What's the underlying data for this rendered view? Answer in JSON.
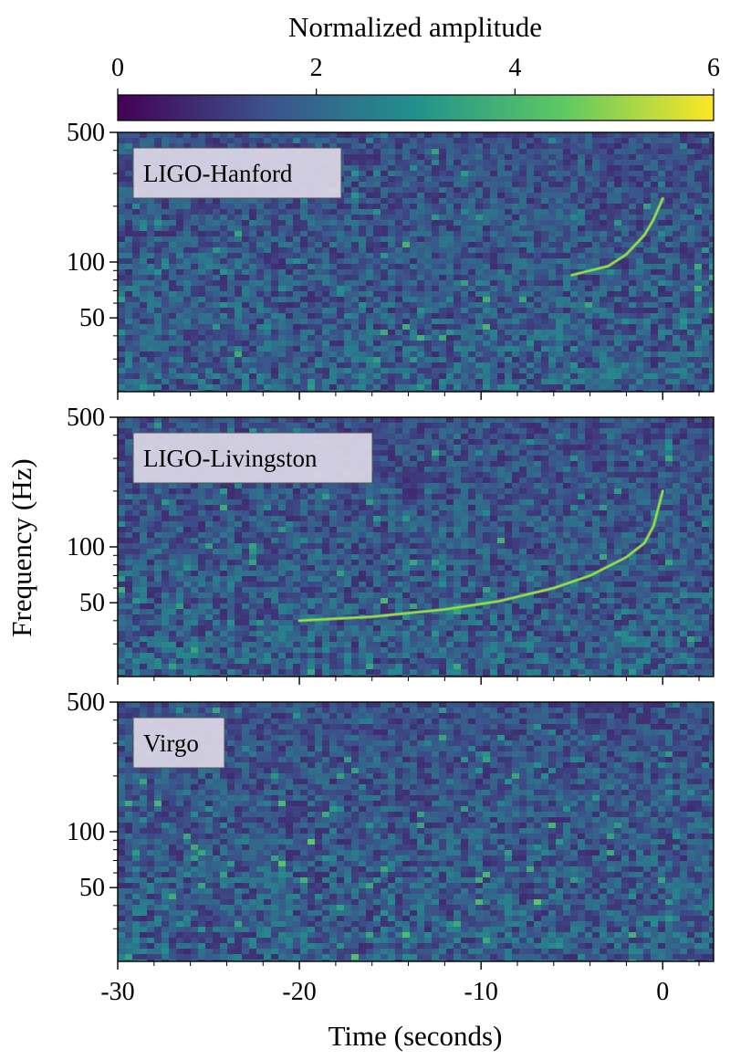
{
  "chart_data": {
    "type": "heatmap",
    "colorbar": {
      "title": "Normalized amplitude",
      "range": [
        0,
        6
      ],
      "ticks": [
        "0",
        "2",
        "4",
        "6"
      ],
      "colormap": [
        "#440154",
        "#3b528b",
        "#21918c",
        "#5ec962",
        "#fde725"
      ]
    },
    "xlabel": "Time (seconds)",
    "ylabel": "Frequency (Hz)",
    "xlim": [
      -30,
      2.8
    ],
    "ylim": [
      20,
      500
    ],
    "yscale": "log",
    "x_ticks": [
      {
        "value": -30,
        "label": "-30"
      },
      {
        "value": -20,
        "label": "-20"
      },
      {
        "value": -10,
        "label": "-10"
      },
      {
        "value": 0,
        "label": "0"
      }
    ],
    "y_ticks": [
      {
        "value": 500,
        "label": "500"
      },
      {
        "value": 100,
        "label": "100"
      },
      {
        "value": 50,
        "label": "50"
      }
    ],
    "panels": [
      {
        "detector": "LIGO-Hanford",
        "track": [
          [
            -5,
            85
          ],
          [
            -3,
            95
          ],
          [
            -2,
            110
          ],
          [
            -1,
            140
          ],
          [
            -0.5,
            170
          ],
          [
            0,
            220
          ]
        ]
      },
      {
        "detector": "LIGO-Livingston",
        "track": [
          [
            -20,
            40
          ],
          [
            -16,
            42
          ],
          [
            -12,
            46
          ],
          [
            -9,
            51
          ],
          [
            -6,
            60
          ],
          [
            -4,
            70
          ],
          [
            -2,
            88
          ],
          [
            -1,
            105
          ],
          [
            -0.5,
            130
          ],
          [
            0,
            200
          ]
        ]
      },
      {
        "detector": "Virgo",
        "track": []
      }
    ]
  }
}
